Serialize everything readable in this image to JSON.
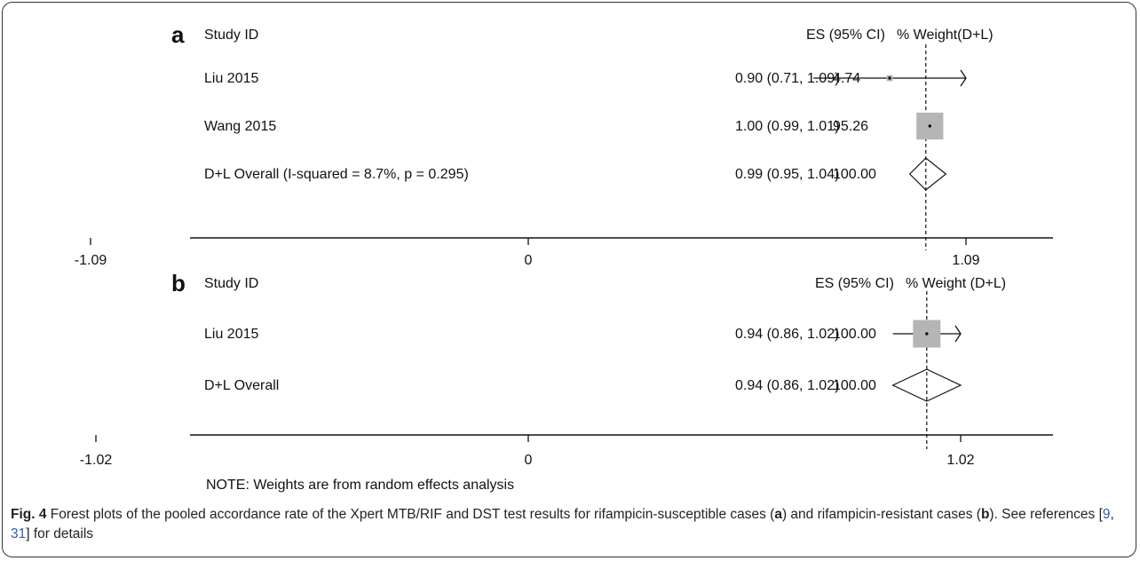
{
  "chart_data": [
    {
      "type": "forest",
      "panel_label": "a",
      "column_headers": {
        "study": "Study ID",
        "es": "ES (95% CI)",
        "weight": "% Weight(D+L)"
      },
      "studies": [
        {
          "name": "Liu 2015",
          "es": 0.9,
          "lower": 0.71,
          "upper": 1.09,
          "ci_text": "0.90 (0.71, 1.09)",
          "weight": 4.74,
          "weight_text": "4.74"
        },
        {
          "name": "Wang 2015",
          "es": 1.0,
          "lower": 0.99,
          "upper": 1.01,
          "ci_text": "1.00 (0.99, 1.01)",
          "weight": 95.26,
          "weight_text": "95.26"
        }
      ],
      "overall": {
        "name": "D+L Overall  (I-squared = 8.7%, p = 0.295)",
        "es": 0.99,
        "lower": 0.95,
        "upper": 1.04,
        "ci_text": "0.99 (0.95, 1.04)",
        "weight_text": "100.00"
      },
      "x_ticks": [
        {
          "value": -1.09,
          "label": "-1.09"
        },
        {
          "value": 0,
          "label": "0"
        },
        {
          "value": 1.09,
          "label": "1.09"
        }
      ],
      "xlim": [
        -1.09,
        1.09
      ],
      "upper_arrow": true
    },
    {
      "type": "forest",
      "panel_label": "b",
      "column_headers": {
        "study": "Study ID",
        "es": "ES (95% CI)",
        "weight": "% Weight (D+L)"
      },
      "studies": [
        {
          "name": "Liu 2015",
          "es": 0.94,
          "lower": 0.86,
          "upper": 1.02,
          "ci_text": "0.94 (0.86, 1.02)",
          "weight": 100.0,
          "weight_text": "100.00"
        }
      ],
      "overall": {
        "name": "D+L Overall",
        "es": 0.94,
        "lower": 0.86,
        "upper": 1.02,
        "ci_text": "0.94 (0.86, 1.02)",
        "weight_text": "100.00"
      },
      "x_ticks": [
        {
          "value": -1.02,
          "label": "-1.02"
        },
        {
          "value": 0,
          "label": "0"
        },
        {
          "value": 1.02,
          "label": "1.02"
        }
      ],
      "xlim": [
        -1.02,
        1.02
      ],
      "upper_arrow": true
    }
  ],
  "note": "NOTE: Weights are from random effects analysis",
  "caption": {
    "label": "Fig. 4",
    "text_1": " Forest plots of the pooled accordance rate of the Xpert MTB/RIF and DST test results for rifampicin-susceptible cases (",
    "bold_a": "a",
    "text_2": ") and rifampicin-resistant cases (",
    "bold_b": "b",
    "text_3": "). See references [",
    "ref_1": "9",
    "text_4": ", ",
    "ref_2": "31",
    "text_5": "] for details"
  }
}
